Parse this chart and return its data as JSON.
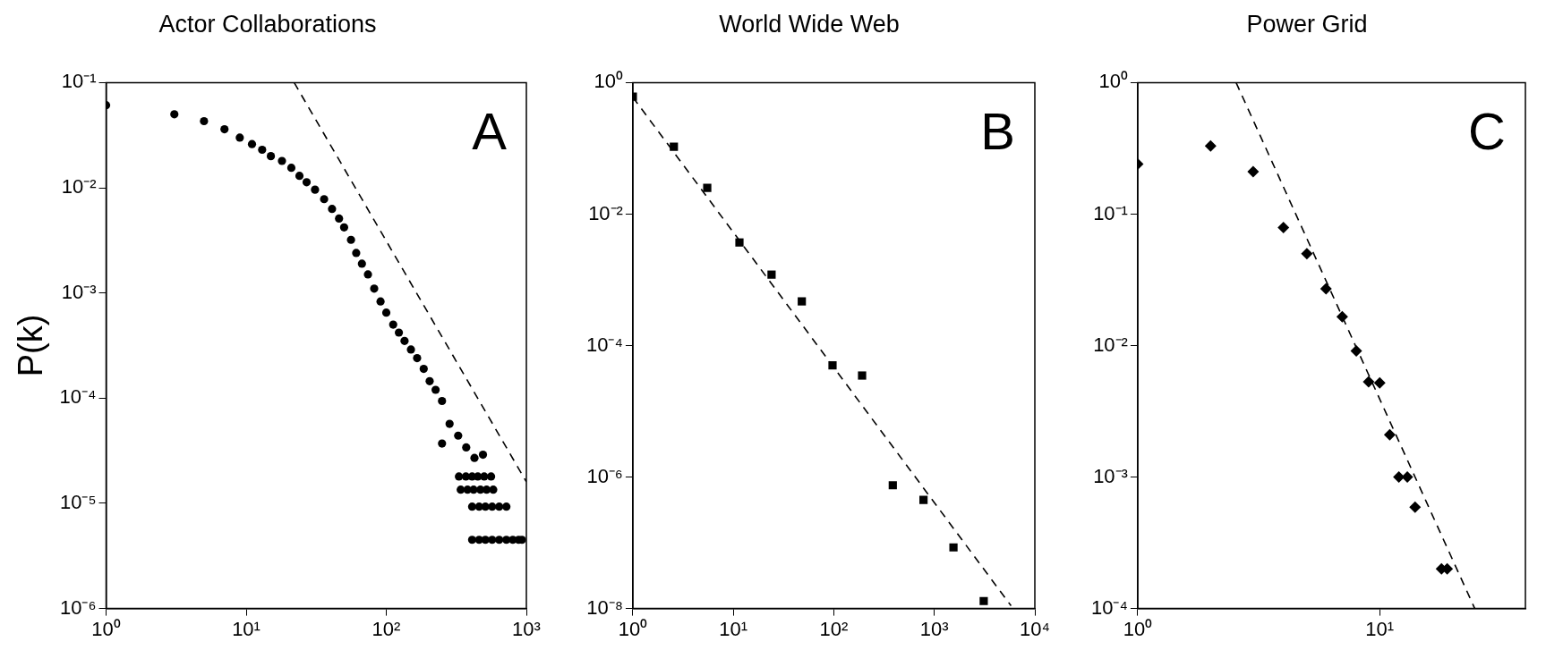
{
  "chart_data": [
    {
      "type": "scatter",
      "title": "Actor Collaborations",
      "ylabel": "P(k)",
      "log": "xy",
      "grid": false,
      "legend": false,
      "annotations": [
        "A"
      ],
      "xlim": [
        1,
        1000
      ],
      "ylim": [
        1e-06,
        0.1
      ],
      "xticks": [
        {
          "value": 1,
          "label": "10⁰"
        },
        {
          "value": 10,
          "label": "10¹"
        },
        {
          "value": 100,
          "label": "10²"
        },
        {
          "value": 1000,
          "label": "10³"
        }
      ],
      "yticks": [
        {
          "value": 1e-06,
          "label": "10⁻⁶"
        },
        {
          "value": 1e-05,
          "label": "10⁻⁵"
        },
        {
          "value": 0.0001,
          "label": "10⁻⁴"
        },
        {
          "value": 0.001,
          "label": "10⁻³"
        },
        {
          "value": 0.01,
          "label": "10⁻²"
        },
        {
          "value": 0.1,
          "label": "10⁻¹"
        }
      ],
      "series": [
        {
          "marker": "circle",
          "color": "#000000",
          "x": [
            1,
            3.07,
            5,
            7,
            9,
            11,
            13,
            15,
            18,
            21,
            24,
            27,
            31,
            36,
            41,
            46,
            50,
            56,
            61,
            67,
            74,
            82,
            91,
            100,
            112,
            123,
            135,
            150,
            166,
            185,
            204,
            225,
            250,
            283,
            250,
            326,
            372,
            426,
            490,
            330,
            370,
            410,
            450,
            500,
            560,
            340,
            380,
            420,
            470,
            520,
            580,
            410,
            460,
            510,
            570,
            640,
            720,
            410,
            460,
            510,
            570,
            640,
            720,
            800,
            880,
            930
          ],
          "values": [
            0.061,
            0.05,
            0.043,
            0.036,
            0.03,
            0.026,
            0.023,
            0.02,
            0.018,
            0.0155,
            0.013,
            0.0113,
            0.0096,
            0.0078,
            0.0063,
            0.0051,
            0.0042,
            0.0032,
            0.0024,
            0.0019,
            0.0015,
            0.0011,
            0.00083,
            0.00065,
            0.0005,
            0.00042,
            0.00035,
            0.00029,
            0.00024,
            0.00019,
            0.000145,
            0.00012,
            9.4e-05,
            5.7e-05,
            3.7e-05,
            4.4e-05,
            3.4e-05,
            2.7e-05,
            2.9e-05,
            1.8e-05,
            1.8e-05,
            1.8e-05,
            1.8e-05,
            1.8e-05,
            1.8e-05,
            1.35e-05,
            1.35e-05,
            1.35e-05,
            1.35e-05,
            1.35e-05,
            1.35e-05,
            9.3e-06,
            9.3e-06,
            9.3e-06,
            9.3e-06,
            9.3e-06,
            9.3e-06,
            4.5e-06,
            4.5e-06,
            4.5e-06,
            4.5e-06,
            4.5e-06,
            4.5e-06,
            4.5e-06,
            4.5e-06,
            4.5e-06
          ]
        },
        {
          "type": "line",
          "marker": "none",
          "line_style": "dashed",
          "color": "#000000",
          "x": [
            22,
            1000
          ],
          "values": [
            0.1,
            1.6e-05
          ]
        }
      ]
    },
    {
      "type": "scatter",
      "title": "World Wide Web",
      "log": "xy",
      "grid": false,
      "legend": false,
      "annotations": [
        "B"
      ],
      "xlim": [
        1,
        10000
      ],
      "ylim": [
        1e-08,
        1
      ],
      "xticks": [
        {
          "value": 1,
          "label": "10⁰"
        },
        {
          "value": 10,
          "label": "10¹"
        },
        {
          "value": 100,
          "label": "10²"
        },
        {
          "value": 1000,
          "label": "10³"
        },
        {
          "value": 10000,
          "label": "10⁴"
        }
      ],
      "yticks": [
        {
          "value": 1e-08,
          "label": "10⁻⁸"
        },
        {
          "value": 1e-06,
          "label": "10⁻⁶"
        },
        {
          "value": 0.0001,
          "label": "10⁻⁴"
        },
        {
          "value": 0.01,
          "label": "10⁻²"
        },
        {
          "value": 1,
          "label": "10⁰"
        }
      ],
      "series": [
        {
          "marker": "square",
          "color": "#000000",
          "x": [
            1,
            2.56,
            5.5,
            11.5,
            24,
            48,
            97,
            191,
            386,
            780,
            1550,
            3100
          ],
          "values": [
            0.61,
            0.106,
            0.025,
            0.0037,
            0.0012,
            0.00047,
            5e-05,
            3.5e-05,
            7.5e-07,
            4.5e-07,
            8.5e-08,
            1.3e-08
          ]
        },
        {
          "type": "line",
          "marker": "none",
          "line_style": "dashed",
          "color": "#000000",
          "x": [
            1,
            5800
          ],
          "values": [
            0.6,
            1.1e-08
          ]
        }
      ]
    },
    {
      "type": "scatter",
      "title": "Power Grid",
      "log": "xy",
      "grid": false,
      "legend": false,
      "annotations": [
        "C"
      ],
      "xlim": [
        1,
        40
      ],
      "ylim": [
        0.0001,
        1
      ],
      "xticks": [
        {
          "value": 1,
          "label": "10⁰"
        },
        {
          "value": 10,
          "label": "10¹"
        }
      ],
      "yticks": [
        {
          "value": 0.0001,
          "label": "10⁻⁴"
        },
        {
          "value": 0.001,
          "label": "10⁻³"
        },
        {
          "value": 0.01,
          "label": "10⁻²"
        },
        {
          "value": 0.1,
          "label": "10⁻¹"
        },
        {
          "value": 1,
          "label": "10⁰"
        }
      ],
      "series": [
        {
          "marker": "diamond",
          "color": "#000000",
          "x": [
            1,
            2,
            3,
            4,
            5,
            6,
            7,
            8,
            9,
            10,
            11,
            12,
            13,
            14,
            18,
            19
          ],
          "values": [
            0.24,
            0.33,
            0.21,
            0.079,
            0.05,
            0.027,
            0.0166,
            0.0091,
            0.0053,
            0.0052,
            0.0021,
            0.001,
            0.001,
            0.00059,
            0.0002,
            0.0002
          ]
        },
        {
          "type": "line",
          "marker": "none",
          "line_style": "dashed",
          "color": "#000000",
          "x": [
            2.55,
            24.7
          ],
          "values": [
            1,
            0.0001
          ]
        }
      ]
    }
  ]
}
